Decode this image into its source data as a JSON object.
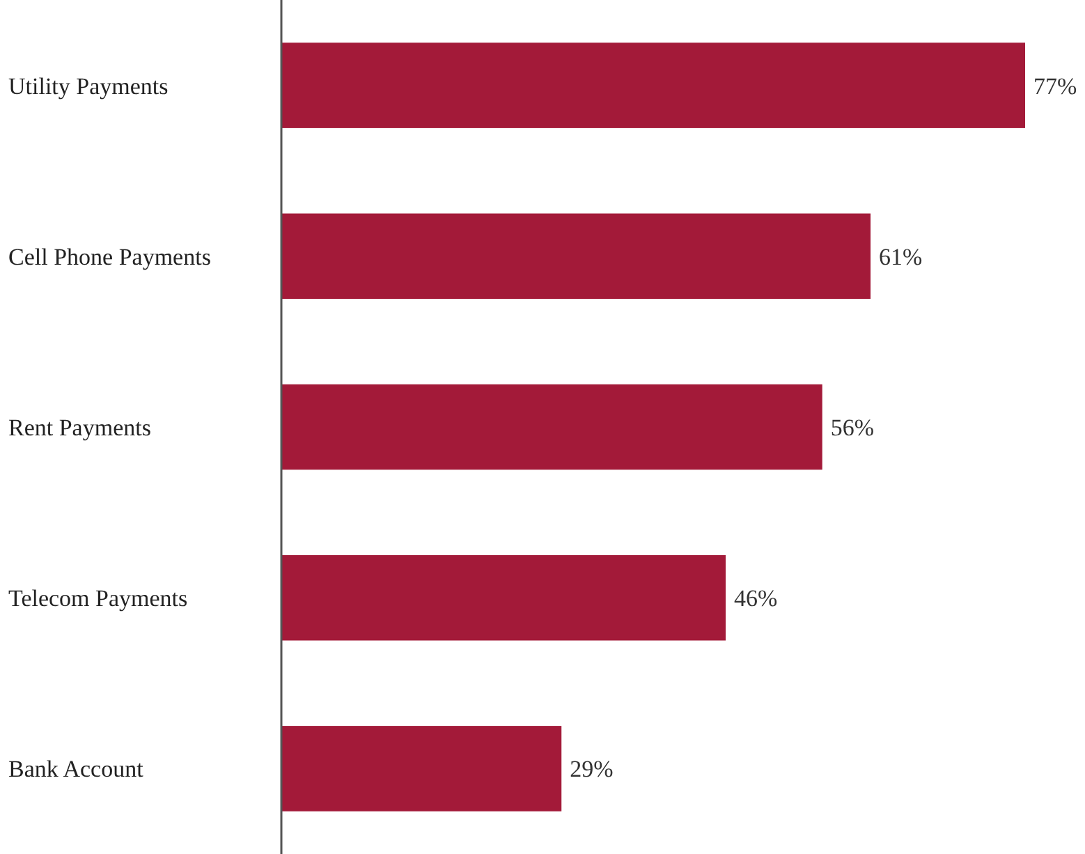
{
  "chart_data": {
    "type": "bar",
    "orientation": "horizontal",
    "categories": [
      "Utility Payments",
      "Cell Phone Payments",
      "Rent Payments",
      "Telecom Payments",
      "Bank Account"
    ],
    "values": [
      77,
      61,
      56,
      46,
      29
    ],
    "color": "#a31a39",
    "value_labels": [
      "77%",
      "61%",
      "56%",
      "46%",
      "29%"
    ]
  }
}
